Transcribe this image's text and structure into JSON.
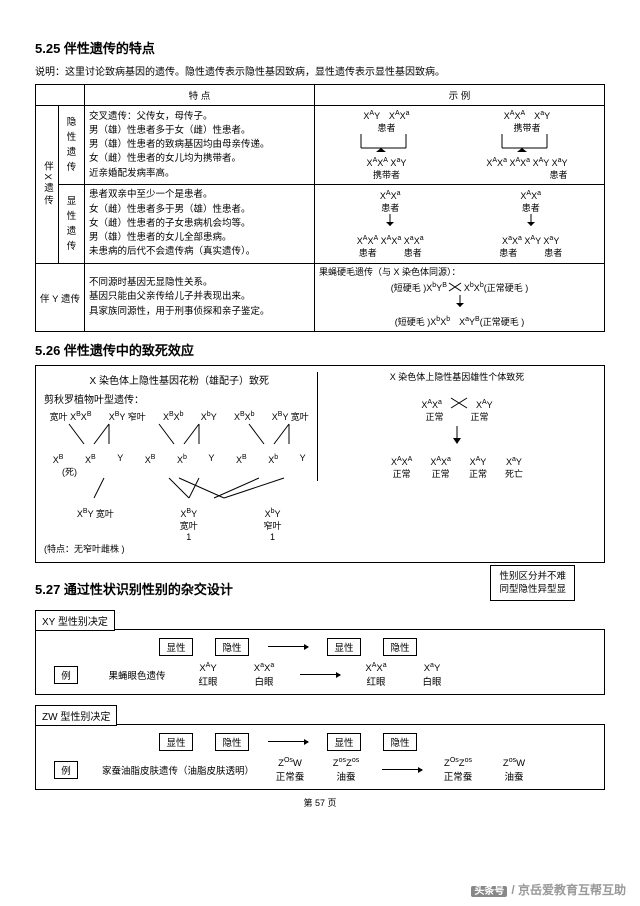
{
  "s525": {
    "title": "5.25 伴性遗传的特点",
    "note": "说明：这里讨论致病基因的遗传。隐性遗传表示隐性基因致病，显性遗传表示显性基因致病。",
    "hdr_feat": "特 点",
    "hdr_ex": "示 例",
    "rowX": "伴X遗传",
    "recessive": "隐性遗传",
    "rec_pts": [
      "交叉遗传：父传女，母传子。",
      "男（雄）性患者多于女（雌）性患者。",
      "男（雄）性患者的致病基因均由母亲传递。",
      "女（雌）性患者的女儿均为携带者。",
      "近亲婚配发病率高。"
    ],
    "dominant": "显性遗传",
    "dom_pts": [
      "患者双亲中至少一个是患者。",
      "女（雌）性患者多于男（雄）性患者。",
      "女（雌）性患者的子女患病机会均等。",
      "男（雄）性患者的女儿全部患病。",
      "未患病的后代不会遗传病（真实遗传）。"
    ],
    "rowY": "伴 Y 遗传",
    "y_pts": [
      "不同源时基因无显隐性关系。",
      "基因只能由父亲传给儿子并表现出来。",
      "具家族同源性，用于刑事侦探和亲子鉴定。"
    ],
    "ex_rec_p1": [
      "X<sup>A</sup>Y",
      "X<sup>A</sup>X<sup>a</sup>"
    ],
    "ex_rec_l1": [
      "患者",
      "携带者"
    ],
    "ex_rec_p2": [
      "X<sup>A</sup>X<sup>A</sup>",
      "X<sup>a</sup>Y"
    ],
    "ex_rec_c": [
      "X<sup>A</sup>X<sup>A</sup>",
      "X<sup>a</sup>Y",
      "X<sup>A</sup>X<sup>a</sup>",
      "X<sup>A</sup>X<sup>a</sup>",
      "X<sup>A</sup>Y",
      "X<sup>a</sup>Y"
    ],
    "ex_rec_cl": [
      "携带者",
      "",
      "",
      "",
      "",
      "患者"
    ],
    "ex_dom_p": [
      "X<sup>A</sup>X<sup>a</sup>",
      "患者",
      "X<sup>A</sup>X<sup>a</sup>",
      "患者"
    ],
    "ex_dom_c": [
      "X<sup>A</sup>X<sup>A</sup>",
      "X<sup>A</sup>X<sup>a</sup>",
      "X<sup>a</sup>X<sup>a</sup>",
      "X<sup>a</sup>X<sup>a</sup>",
      "X<sup>A</sup>Y",
      "X<sup>a</sup>Y"
    ],
    "ex_dom_cl": [
      "患者",
      "",
      "患者",
      "患者",
      "",
      "患者"
    ],
    "ex_y_title": "果蝇硬毛遗传（与 X 染色体同源）：",
    "ex_y_l1": "(短硬毛 )X<sup>b</sup>Y<sup>B</sup> × X<sup>b</sup>X<sup>b</sup>(正常硬毛 )",
    "ex_y_l2": "(短硬毛 )X<sup>b</sup>X<sup>b</sup>　X<sup>a</sup>Y<sup>B</sup>(正常硬毛 )"
  },
  "s526": {
    "title": "5.26 伴性遗传中的致死效应",
    "leftTitle": "X 染色体上隐性基因花粉（雄配子）致死",
    "rightTitle": "X 染色体上隐性基因雄性个体致死",
    "leftSub": "剪秋罗植物叶型遗传：",
    "leftLabels": [
      "宽叶",
      "窄叶",
      "宽叶"
    ],
    "leftGeno": [
      "X<sup>B</sup>X<sup>B</sup>",
      "X<sup>B</sup>Y",
      "X<sup>B</sup>X<sup>b</sup>",
      "X<sup>b</sup>Y",
      "X<sup>B</sup>X<sup>b</sup>",
      "X<sup>B</sup>Y"
    ],
    "leftMid": [
      "X<sup>B</sup>",
      "X<sup>B</sup>",
      "Y",
      "X<sup>B</sup>",
      "X<sup>b</sup>",
      "Y"
    ],
    "leftDeath": "(死)",
    "leftOut": [
      "X<sup>B</sup>Y",
      "X<sup>B</sup>Y",
      "X<sup>b</sup>Y"
    ],
    "leftOutL": [
      "宽叶",
      "宽叶",
      "窄叶"
    ],
    "leftCount": [
      "1",
      "1"
    ],
    "leftNote": "(特点：无窄叶雌株 )",
    "rightP": [
      "X<sup>A</sup>X<sup>a</sup>",
      "X<sup>A</sup>Y"
    ],
    "rightPL": [
      "正常",
      "正常"
    ],
    "rightC": [
      "X<sup>A</sup>X<sup>A</sup>",
      "X<sup>A</sup>X<sup>a</sup>",
      "X<sup>A</sup>Y",
      "X<sup>a</sup>Y"
    ],
    "rightCL": [
      "正常",
      "正常",
      "正常",
      "死亡"
    ]
  },
  "s527": {
    "title": "5.27 通过性状识别性别的杂交设计",
    "callout": [
      "性别区分并不难",
      "同型隐性异型显"
    ],
    "xy": "XY 型性别决定",
    "zw": "ZW 型性别决定",
    "dom": "显性",
    "rec": "隐性",
    "ex": "例",
    "xy_trait": "果蝇眼色遗传",
    "xy_p": [
      "X<sup>A</sup>Y",
      "X<sup>a</sup>X<sup>a</sup>"
    ],
    "xy_pl": [
      "红眼",
      "白眼"
    ],
    "xy_c": [
      "X<sup>A</sup>X<sup>a</sup>",
      "X<sup>a</sup>Y"
    ],
    "xy_cl": [
      "红眼",
      "白眼"
    ],
    "zw_trait": "家蚕油脂皮肤遗传（油脂皮肤透明）",
    "zw_p": [
      "Z<sup>Os</sup>W",
      "Z<sup>os</sup>Z<sup>os</sup>"
    ],
    "zw_pl": [
      "正常蚕",
      "油蚕"
    ],
    "zw_c": [
      "Z<sup>Os</sup>Z<sup>os</sup>",
      "Z<sup>os</sup>W"
    ],
    "zw_cl": [
      "正常蚕",
      "油蚕"
    ]
  },
  "page": "第 57 页",
  "wm": "京岳爱教育互帮互助",
  "wm_src": "头条号"
}
